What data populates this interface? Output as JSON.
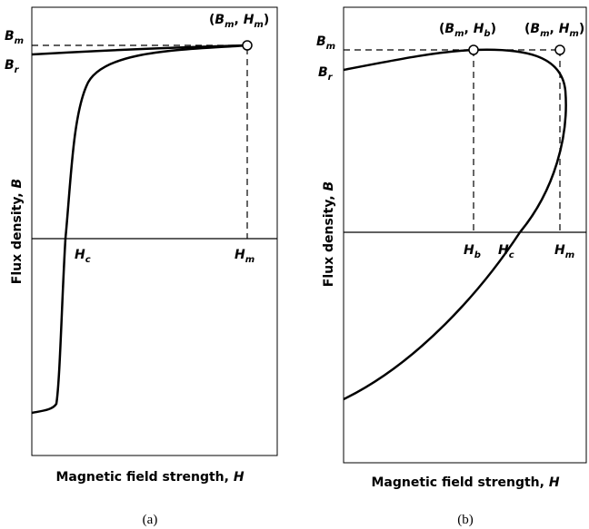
{
  "panels": [
    {
      "caption": "(a)",
      "y_axis_label": [
        {
          "text": "Flux density, "
        },
        {
          "text": "B",
          "italic": true
        }
      ],
      "x_axis_label": [
        {
          "text": "Magnetic field strength, "
        },
        {
          "text": "H",
          "italic": true
        }
      ],
      "labels": {
        "Bm": [
          {
            "text": "B",
            "italic": true
          },
          {
            "text": "m",
            "italic": true,
            "sub": true
          }
        ],
        "Br": [
          {
            "text": "B",
            "italic": true
          },
          {
            "text": "r",
            "italic": true,
            "sub": true
          }
        ],
        "Hc": [
          {
            "text": "H",
            "italic": true
          },
          {
            "text": "c",
            "italic": true,
            "sub": true
          }
        ],
        "Hm": [
          {
            "text": "H",
            "italic": true
          },
          {
            "text": "m",
            "italic": true,
            "sub": true
          }
        ],
        "point_m": [
          {
            "text": "("
          },
          {
            "text": "B",
            "italic": true
          },
          {
            "text": "m",
            "italic": true,
            "sub": true
          },
          {
            "text": ", "
          },
          {
            "text": "H",
            "italic": true
          },
          {
            "text": "m",
            "italic": true,
            "sub": true
          },
          {
            "text": ")"
          }
        ]
      }
    },
    {
      "caption": "(b)",
      "y_axis_label": [
        {
          "text": "Flux density, "
        },
        {
          "text": "B",
          "italic": true
        }
      ],
      "x_axis_label": [
        {
          "text": "Magnetic field strength, "
        },
        {
          "text": "H",
          "italic": true
        }
      ],
      "labels": {
        "Bm": [
          {
            "text": "B",
            "italic": true
          },
          {
            "text": "m",
            "italic": true,
            "sub": true
          }
        ],
        "Br": [
          {
            "text": "B",
            "italic": true
          },
          {
            "text": "r",
            "italic": true,
            "sub": true
          }
        ],
        "Hb": [
          {
            "text": "H",
            "italic": true
          },
          {
            "text": "b",
            "italic": true,
            "sub": true
          }
        ],
        "Hc": [
          {
            "text": "H",
            "italic": true
          },
          {
            "text": "c",
            "italic": true,
            "sub": true
          }
        ],
        "Hm": [
          {
            "text": "H",
            "italic": true
          },
          {
            "text": "m",
            "italic": true,
            "sub": true
          }
        ],
        "point_b": [
          {
            "text": "("
          },
          {
            "text": "B",
            "italic": true
          },
          {
            "text": "m",
            "italic": true,
            "sub": true
          },
          {
            "text": ", "
          },
          {
            "text": "H",
            "italic": true
          },
          {
            "text": "b",
            "italic": true,
            "sub": true
          },
          {
            "text": ")"
          }
        ],
        "point_m": [
          {
            "text": "("
          },
          {
            "text": "B",
            "italic": true
          },
          {
            "text": "m",
            "italic": true,
            "sub": true
          },
          {
            "text": ", "
          },
          {
            "text": "H",
            "italic": true
          },
          {
            "text": "m",
            "italic": true,
            "sub": true
          },
          {
            "text": ")"
          }
        ]
      }
    }
  ]
}
